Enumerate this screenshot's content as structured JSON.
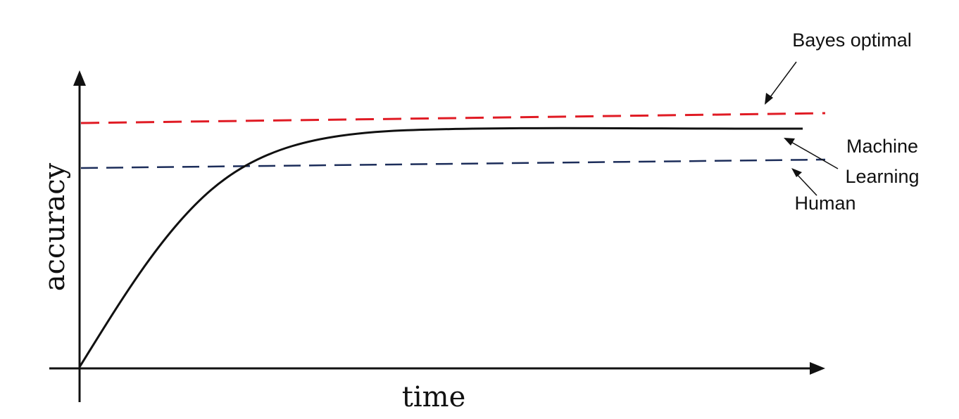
{
  "axes": {
    "x_label": "time",
    "y_label": "accuracy"
  },
  "curves": [
    {
      "id": "bayes",
      "name": "Bayes optimal",
      "style": "dashed",
      "color": "#e01b24"
    },
    {
      "id": "human",
      "name": "Human",
      "style": "dashed",
      "color": "#1c2d5a"
    },
    {
      "id": "ml",
      "name": "Machine Learning",
      "style": "solid",
      "color": "#111111"
    }
  ],
  "annotations": {
    "bayes_label": "Bayes optimal",
    "ml_label_line1": "Machine",
    "ml_label_line2": "Learning",
    "human_label": "Human"
  },
  "colors": {
    "axis": "#111111",
    "bayes": "#e01b24",
    "human": "#1c2d5a",
    "ml": "#111111",
    "background": "#ffffff"
  }
}
